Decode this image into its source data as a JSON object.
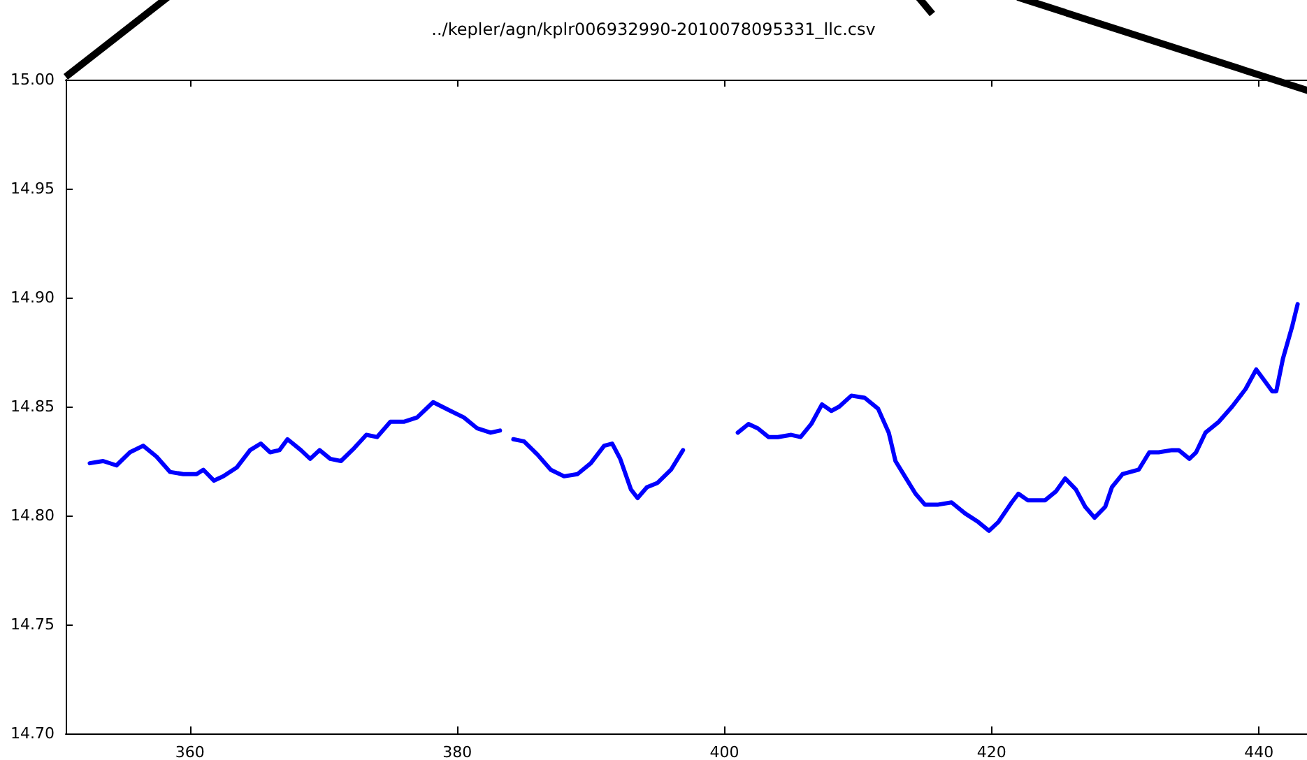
{
  "chart_data": {
    "type": "line",
    "title": "../kepler/agn/kplr006932990-2010078095331_llc.csv",
    "x": [
      352.5,
      353.5,
      354.5,
      355.5,
      356.5,
      357.5,
      358.5,
      359.5,
      360.5,
      361,
      361.8,
      362.5,
      363.5,
      364.5,
      365.3,
      366,
      366.7,
      367.3,
      368.3,
      369,
      369.7,
      370.5,
      371.3,
      372.3,
      373.2,
      374,
      375,
      376,
      377,
      378.2,
      379.5,
      380.5,
      381.5,
      382.5,
      383.2,
      383.7,
      384.2,
      385,
      386,
      387,
      388,
      389,
      390,
      391,
      391.6,
      392.2,
      393,
      393.5,
      394.2,
      395,
      396,
      396.9,
      399,
      401,
      401.8,
      402.5,
      403.3,
      404,
      405,
      405.7,
      406.5,
      407.3,
      408,
      408.6,
      409.5,
      410.5,
      411.5,
      412.3,
      412.8,
      413.5,
      414.3,
      415,
      416,
      417,
      418,
      419,
      419.8,
      420.5,
      421.5,
      422,
      422.7,
      424,
      424.8,
      425.5,
      426.3,
      427,
      427.7,
      428.5,
      429,
      429.8,
      431,
      431.8,
      432.5,
      433.5,
      434,
      434.8,
      435.3,
      436,
      437,
      438,
      439,
      439.8,
      440.4,
      441,
      441.3,
      441.8,
      442.5,
      442.9
    ],
    "series": [
      {
        "color": "#0000ff",
        "values": [
          14.824,
          14.825,
          14.823,
          14.829,
          14.832,
          14.827,
          14.82,
          14.819,
          14.819,
          14.821,
          14.816,
          14.818,
          14.822,
          14.83,
          14.833,
          14.829,
          14.83,
          14.835,
          14.83,
          14.826,
          14.83,
          14.826,
          14.825,
          14.831,
          14.837,
          14.836,
          14.843,
          14.843,
          14.845,
          14.852,
          14.848,
          14.845,
          14.84,
          14.838,
          14.839,
          null,
          14.835,
          14.834,
          14.828,
          14.821,
          14.818,
          14.819,
          14.824,
          14.832,
          14.833,
          14.826,
          14.812,
          14.808,
          14.813,
          14.815,
          14.821,
          14.83,
          null,
          14.838,
          14.842,
          14.84,
          14.836,
          14.836,
          14.837,
          14.836,
          14.842,
          14.851,
          14.848,
          14.85,
          14.855,
          14.854,
          14.849,
          14.838,
          14.825,
          14.818,
          14.81,
          14.805,
          14.805,
          14.806,
          14.801,
          14.797,
          14.793,
          14.797,
          14.806,
          14.81,
          14.807,
          14.807,
          14.811,
          14.817,
          14.812,
          14.804,
          14.799,
          14.804,
          14.813,
          14.819,
          14.821,
          14.829,
          14.829,
          14.83,
          14.83,
          14.826,
          14.829,
          14.838,
          14.843,
          14.85,
          14.858,
          14.867,
          14.862,
          14.857,
          14.857,
          14.872,
          14.887,
          14.897
        ]
      }
    ],
    "xlim": [
      350.7,
      443.6
    ],
    "xticks": [
      360,
      380,
      400,
      420,
      440
    ],
    "ylim": [
      14.7,
      15.0
    ],
    "yticks": [
      {
        "value": 14.7,
        "label": "14.70"
      },
      {
        "value": 14.75,
        "label": "14.75"
      },
      {
        "value": 14.8,
        "label": "14.80"
      },
      {
        "value": 14.85,
        "label": "14.85"
      },
      {
        "value": 14.9,
        "label": "14.90"
      },
      {
        "value": 14.95,
        "label": "14.95"
      },
      {
        "value": 15.0,
        "label": "15.00"
      }
    ],
    "grid": false,
    "marker": "none",
    "line_style": "solid"
  }
}
